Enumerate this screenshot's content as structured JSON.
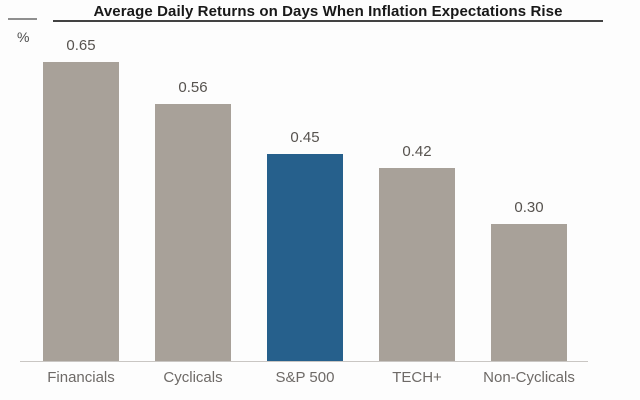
{
  "chart_data": {
    "type": "bar",
    "title": "Average Daily Returns on Days When Inflation Expectations Rise",
    "ylabel": "%",
    "xlabel": "",
    "categories": [
      "Financials",
      "Cyclicals",
      "S&P 500",
      "TECH+",
      "Non-Cyclicals"
    ],
    "values": [
      0.65,
      0.56,
      0.45,
      0.42,
      0.3
    ],
    "value_labels": [
      "0.65",
      "0.56",
      "0.45",
      "0.42",
      "0.30"
    ],
    "ylim": [
      0,
      0.78
    ],
    "grid": false,
    "legend_position": "none",
    "highlight_index": 2,
    "colors": {
      "bar_default": "#a8a199",
      "bar_highlight": "#26608c",
      "title_text": "#181818",
      "value_label": "#57534f",
      "category_label": "#6e6a67",
      "baseline": "#c9c6c3",
      "title_rule": "#424242",
      "axis_header_rule": "#8f8f8f",
      "background": "#fdfdfd"
    }
  }
}
